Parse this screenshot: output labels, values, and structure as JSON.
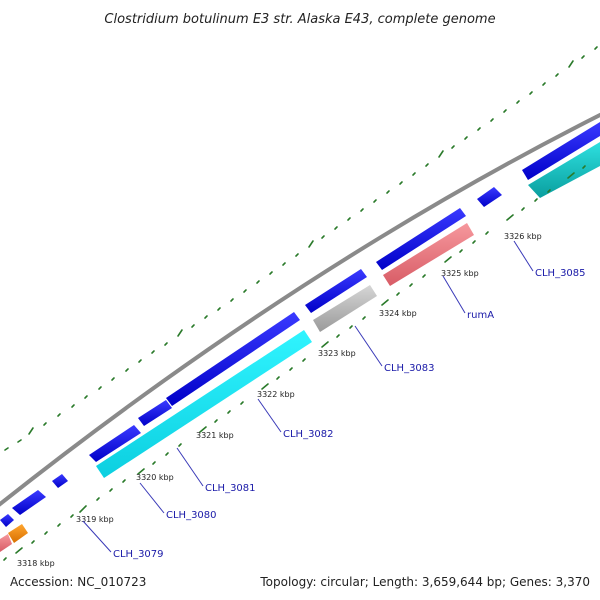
{
  "title": "Clostridium botulinum E3 str. Alaska E43, complete genome",
  "footer": {
    "accession": "Accession: NC_010723",
    "summary": "Topology: circular; Length: 3,659,644 bp; Genes: 3,370"
  },
  "colors": {
    "backbone": "#8a8a8a",
    "cds_forward": "#0a0ae6",
    "cds_reverse_cyan": "#16e8f0",
    "cds_reverse_teal": "#15c9c9",
    "pseudo_gray": "#bdbdbd",
    "rna_pink": "#ef7f86",
    "rna_orange": "#f28c10",
    "tick_green": "#2a7a2a",
    "label_blue": "#1a1aa8"
  },
  "ticks": [
    {
      "label": "3318 kbp"
    },
    {
      "label": "3319 kbp"
    },
    {
      "label": "3320 kbp"
    },
    {
      "label": "3321 kbp"
    },
    {
      "label": "3322 kbp"
    },
    {
      "label": "3323 kbp"
    },
    {
      "label": "3324 kbp"
    },
    {
      "label": "3325 kbp"
    },
    {
      "label": "3326 kbp"
    }
  ],
  "gene_labels": [
    {
      "name": "CLH_3079"
    },
    {
      "name": "CLH_3080"
    },
    {
      "name": "CLH_3081"
    },
    {
      "name": "CLH_3082"
    },
    {
      "name": "CLH_3083"
    },
    {
      "name": "rumA"
    },
    {
      "name": "CLH_3085"
    }
  ]
}
